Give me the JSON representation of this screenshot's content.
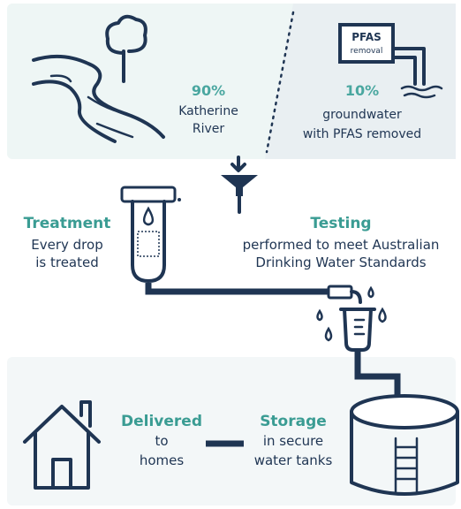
{
  "source": {
    "river": {
      "percent": "90%",
      "lines": [
        "Katherine",
        "River"
      ]
    },
    "pfas_icon": {
      "lines": [
        "PFAS",
        "removal"
      ]
    },
    "groundwater": {
      "percent": "10%",
      "lines": [
        "groundwater",
        "with PFAS removed"
      ]
    }
  },
  "treatment": {
    "title": "Treatment",
    "lines": [
      "Every drop",
      "is treated"
    ]
  },
  "testing": {
    "title": "Testing",
    "lines": [
      "performed to meet Australian",
      "Drinking Water Standards"
    ]
  },
  "delivered": {
    "title": "Delivered",
    "lines": [
      "to",
      "homes"
    ]
  },
  "storage": {
    "title": "Storage",
    "lines": [
      "in secure",
      "water tanks"
    ]
  }
}
